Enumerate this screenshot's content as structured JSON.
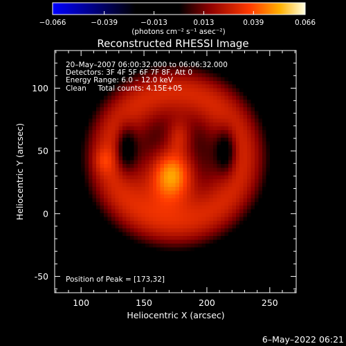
{
  "chart_data": {
    "type": "heatmap",
    "title": "Reconstructed RHESSI Image",
    "xlabel": "Heliocentric X (arcsec)",
    "ylabel": "Heliocentric Y (arcsec)",
    "xlim": [
      79,
      271
    ],
    "ylim": [
      -63,
      130
    ],
    "x_ticks": [
      100,
      150,
      200,
      250
    ],
    "y_ticks": [
      -50,
      0,
      50,
      100
    ],
    "colorbar": {
      "min": -0.066,
      "max": 0.066,
      "tick_values": [
        -0.066,
        -0.039,
        -0.013,
        0.013,
        0.039,
        0.066
      ],
      "tick_labels": [
        "−0.066",
        "−0.039",
        "−0.013",
        "0.013",
        "0.039",
        "0.066"
      ],
      "units_label": "(photons cm⁻² s⁻¹ asec⁻²)"
    },
    "annotations": [
      "20–May–2007 06:00:32.000 to 06:06:32.000",
      "Detectors: 3F 4F 5F 6F 7F 8F, Att 0",
      "Energy Range: 6.0 – 12.0 keV",
      "Clean     Total counts: 4.15E+05"
    ],
    "peak_label": "Position of Peak = [173,32]",
    "peak": [
      173,
      32
    ],
    "ring_center": [
      175,
      45
    ],
    "ring_radius": 58,
    "timestamp": "6–May–2022 06:21"
  }
}
